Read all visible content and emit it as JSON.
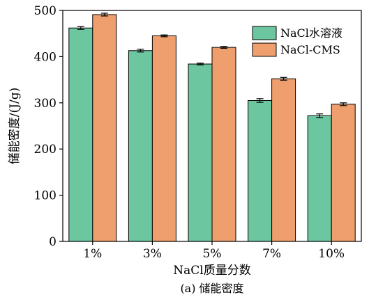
{
  "chart_data": {
    "type": "bar",
    "title": "",
    "xlabel": "NaCl质量分数",
    "ylabel": "储能密度/(J/g)",
    "categories": [
      "1%",
      "3%",
      "5%",
      "7%",
      "10%"
    ],
    "ylim": [
      0,
      500
    ],
    "yticks": [
      0,
      100,
      200,
      300,
      400,
      500
    ],
    "grid": false,
    "legend_position": "top-right",
    "series": [
      {
        "name": "NaCl水溶液",
        "values": [
          462,
          413,
          384,
          305,
          272
        ],
        "errors": [
          3,
          3,
          2,
          4,
          4
        ],
        "color": "#6cc6a0"
      },
      {
        "name": "NaCl-CMS",
        "values": [
          491,
          445,
          420,
          352,
          297
        ],
        "errors": [
          3,
          2,
          2,
          3,
          3
        ],
        "color": "#ef9f6e"
      }
    ]
  },
  "caption": "(a) 储能密度"
}
